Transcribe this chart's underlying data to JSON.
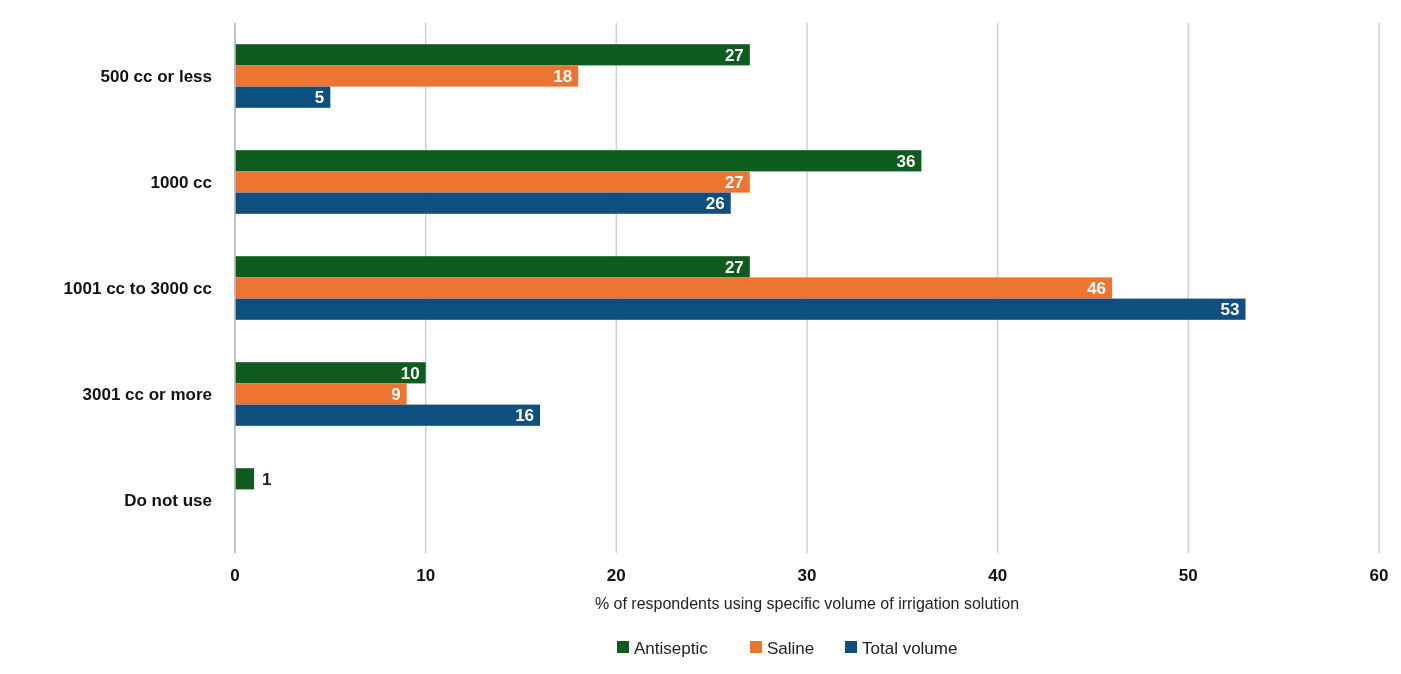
{
  "chart_data": {
    "type": "bar",
    "orientation": "horizontal",
    "xlabel": "% of respondents using specific volume of irrigation solution",
    "categories": [
      "500 cc or less",
      "1000 cc",
      "1001 cc to 3000 cc",
      "3001 cc or more",
      "Do not use"
    ],
    "series": [
      {
        "name": "Antiseptic",
        "color": "#0e5c1d",
        "values": [
          27,
          36,
          27,
          10,
          1
        ]
      },
      {
        "name": "Saline",
        "color": "#ee7431",
        "values": [
          18,
          27,
          46,
          9,
          null
        ]
      },
      {
        "name": "Total volume",
        "color": "#0f4f80",
        "values": [
          5,
          26,
          53,
          16,
          null
        ]
      }
    ],
    "xlim": [
      0,
      60
    ],
    "xticks": [
      0,
      10,
      20,
      30,
      40,
      50,
      60
    ],
    "grid": "x",
    "legend": "bottom",
    "data_labels": true
  }
}
